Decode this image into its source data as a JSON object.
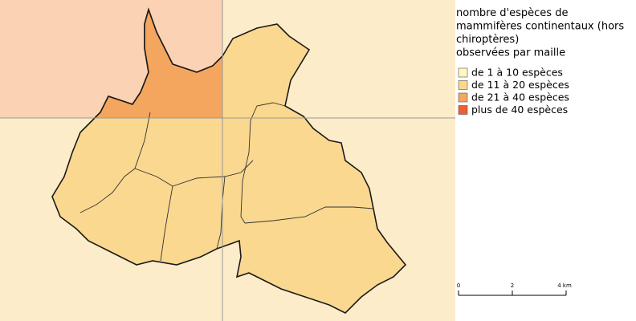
{
  "legend": {
    "title": [
      "nombre d'espèces de",
      "mammifères continentaux (hors",
      "chiroptères)",
      "observées par maille"
    ],
    "items": [
      {
        "label": "de 1 à 10 espèces",
        "color": "#fff7c2"
      },
      {
        "label": "de 11 à 20 espèces",
        "color": "#fbd98c"
      },
      {
        "label": "de 21 à 40 espèces",
        "color": "#f6a75d"
      },
      {
        "label": "plus de 40 espèces",
        "color": "#ee6033"
      }
    ]
  },
  "scale": {
    "ticks": [
      0,
      2,
      {
        "value": 4,
        "label": "4 km"
      }
    ]
  }
}
